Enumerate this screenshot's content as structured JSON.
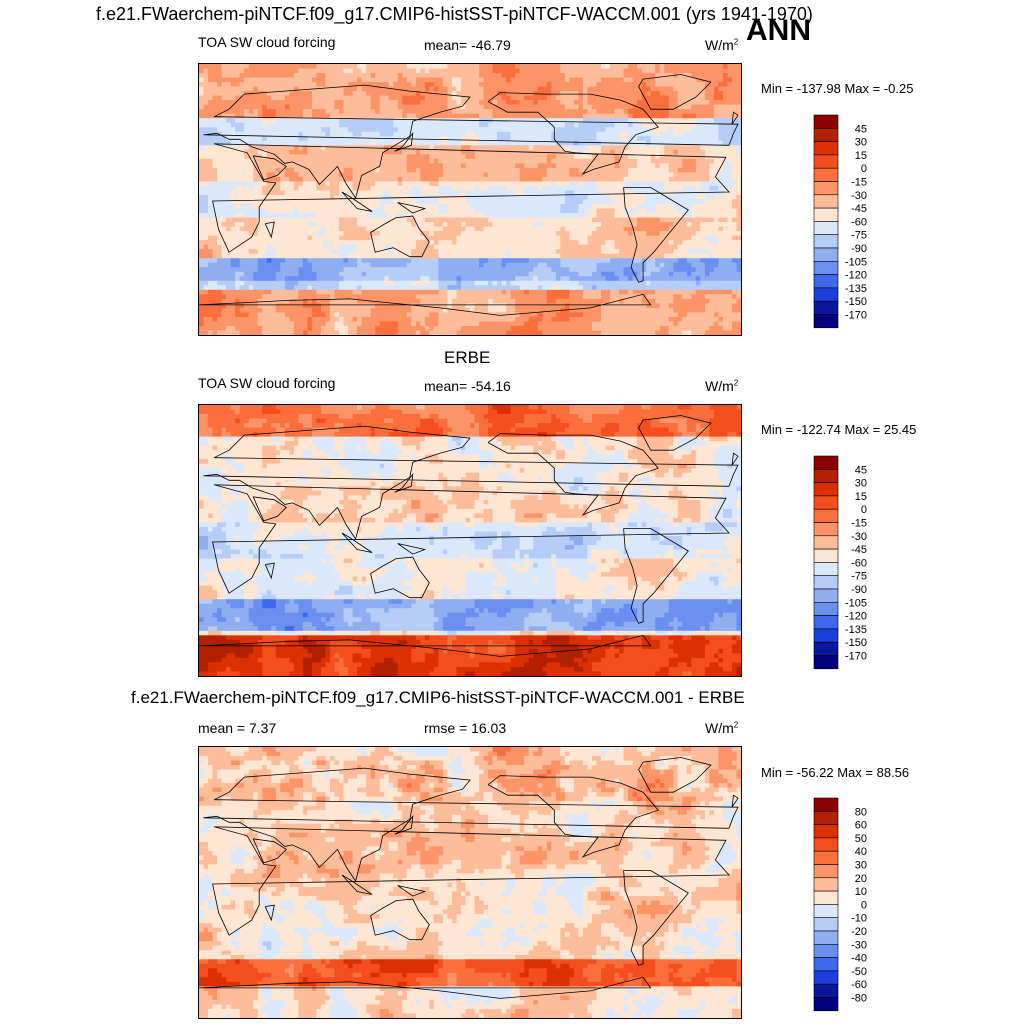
{
  "header": {
    "title": "f.e21.FWaerchem-piNTCF.f09_g17.CMIP6-histSST-piNTCF-WACCM.001 (yrs 1941-1970)",
    "season": "ANN"
  },
  "panels": [
    {
      "id": "model",
      "title": "",
      "variable": "TOA SW cloud forcing",
      "stat_left": "",
      "stat_center": "mean= -46.79",
      "units_base": "W/m",
      "units_sup": "2",
      "minmax": "Min = -137.98 Max =  -0.25",
      "map_base": "-40"
    },
    {
      "id": "obs",
      "title": "ERBE",
      "variable": "TOA SW cloud forcing",
      "stat_left": "",
      "stat_center": "mean= -54.16",
      "units_base": "W/m",
      "units_sup": "2",
      "minmax": "Min = -122.74 Max =  25.45",
      "map_base": "-55"
    },
    {
      "id": "diff",
      "title": "f.e21.FWaerchem-piNTCF.f09_g17.CMIP6-histSST-piNTCF-WACCM.001 - ERBE",
      "variable": "",
      "stat_left": "mean =   7.37",
      "stat_center": "rmse =  16.03",
      "units_base": "W/m",
      "units_sup": "2",
      "minmax": "Min = -56.22 Max =  88.56",
      "map_base": "8"
    }
  ],
  "chart_data": [
    {
      "type": "heatmap",
      "title": "",
      "subtitle": "TOA SW cloud forcing",
      "units": "W/m2",
      "mean": -46.79,
      "min": -137.98,
      "max": -0.25,
      "colorbar_levels": [
        "45",
        "30",
        "15",
        "0",
        "-15",
        "-30",
        "-45",
        "-60",
        "-75",
        "-90",
        "-105",
        "-120",
        "-135",
        "-150",
        "-170"
      ],
      "colorbar_colors": [
        "#8b0000",
        "#b22000",
        "#dd3000",
        "#f44e1e",
        "#fb6f3c",
        "#fc9468",
        "#fdbd9a",
        "#fee6d2",
        "#dbe8fb",
        "#b5cdf7",
        "#8faef2",
        "#6a8ff1",
        "#3f68ec",
        "#1a3fdc",
        "#08179e",
        "#000080"
      ]
    },
    {
      "type": "heatmap",
      "title": "ERBE",
      "subtitle": "TOA SW cloud forcing",
      "units": "W/m2",
      "mean": -54.16,
      "min": -122.74,
      "max": 25.45,
      "colorbar_levels": [
        "45",
        "30",
        "15",
        "0",
        "-15",
        "-30",
        "-45",
        "-60",
        "-75",
        "-90",
        "-105",
        "-120",
        "-135",
        "-150",
        "-170"
      ],
      "colorbar_colors": [
        "#8b0000",
        "#b22000",
        "#dd3000",
        "#f44e1e",
        "#fb6f3c",
        "#fc9468",
        "#fdbd9a",
        "#fee6d2",
        "#dbe8fb",
        "#b5cdf7",
        "#8faef2",
        "#6a8ff1",
        "#3f68ec",
        "#1a3fdc",
        "#08179e",
        "#000080"
      ]
    },
    {
      "type": "heatmap",
      "title": "f.e21.FWaerchem-piNTCF.f09_g17.CMIP6-histSST-piNTCF-WACCM.001 - ERBE",
      "units": "W/m2",
      "mean": 7.37,
      "rmse": 16.03,
      "min": -56.22,
      "max": 88.56,
      "colorbar_levels": [
        "80",
        "60",
        "50",
        "40",
        "30",
        "20",
        "10",
        "0",
        "-10",
        "-20",
        "-30",
        "-40",
        "-50",
        "-60",
        "-80"
      ],
      "colorbar_colors": [
        "#8b0000",
        "#b22000",
        "#dd3000",
        "#f44e1e",
        "#fb6f3c",
        "#fc9468",
        "#fdbd9a",
        "#fee6d2",
        "#dbe8fb",
        "#b5cdf7",
        "#8faef2",
        "#6a8ff1",
        "#3f68ec",
        "#1a3fdc",
        "#08179e",
        "#000080"
      ]
    }
  ]
}
